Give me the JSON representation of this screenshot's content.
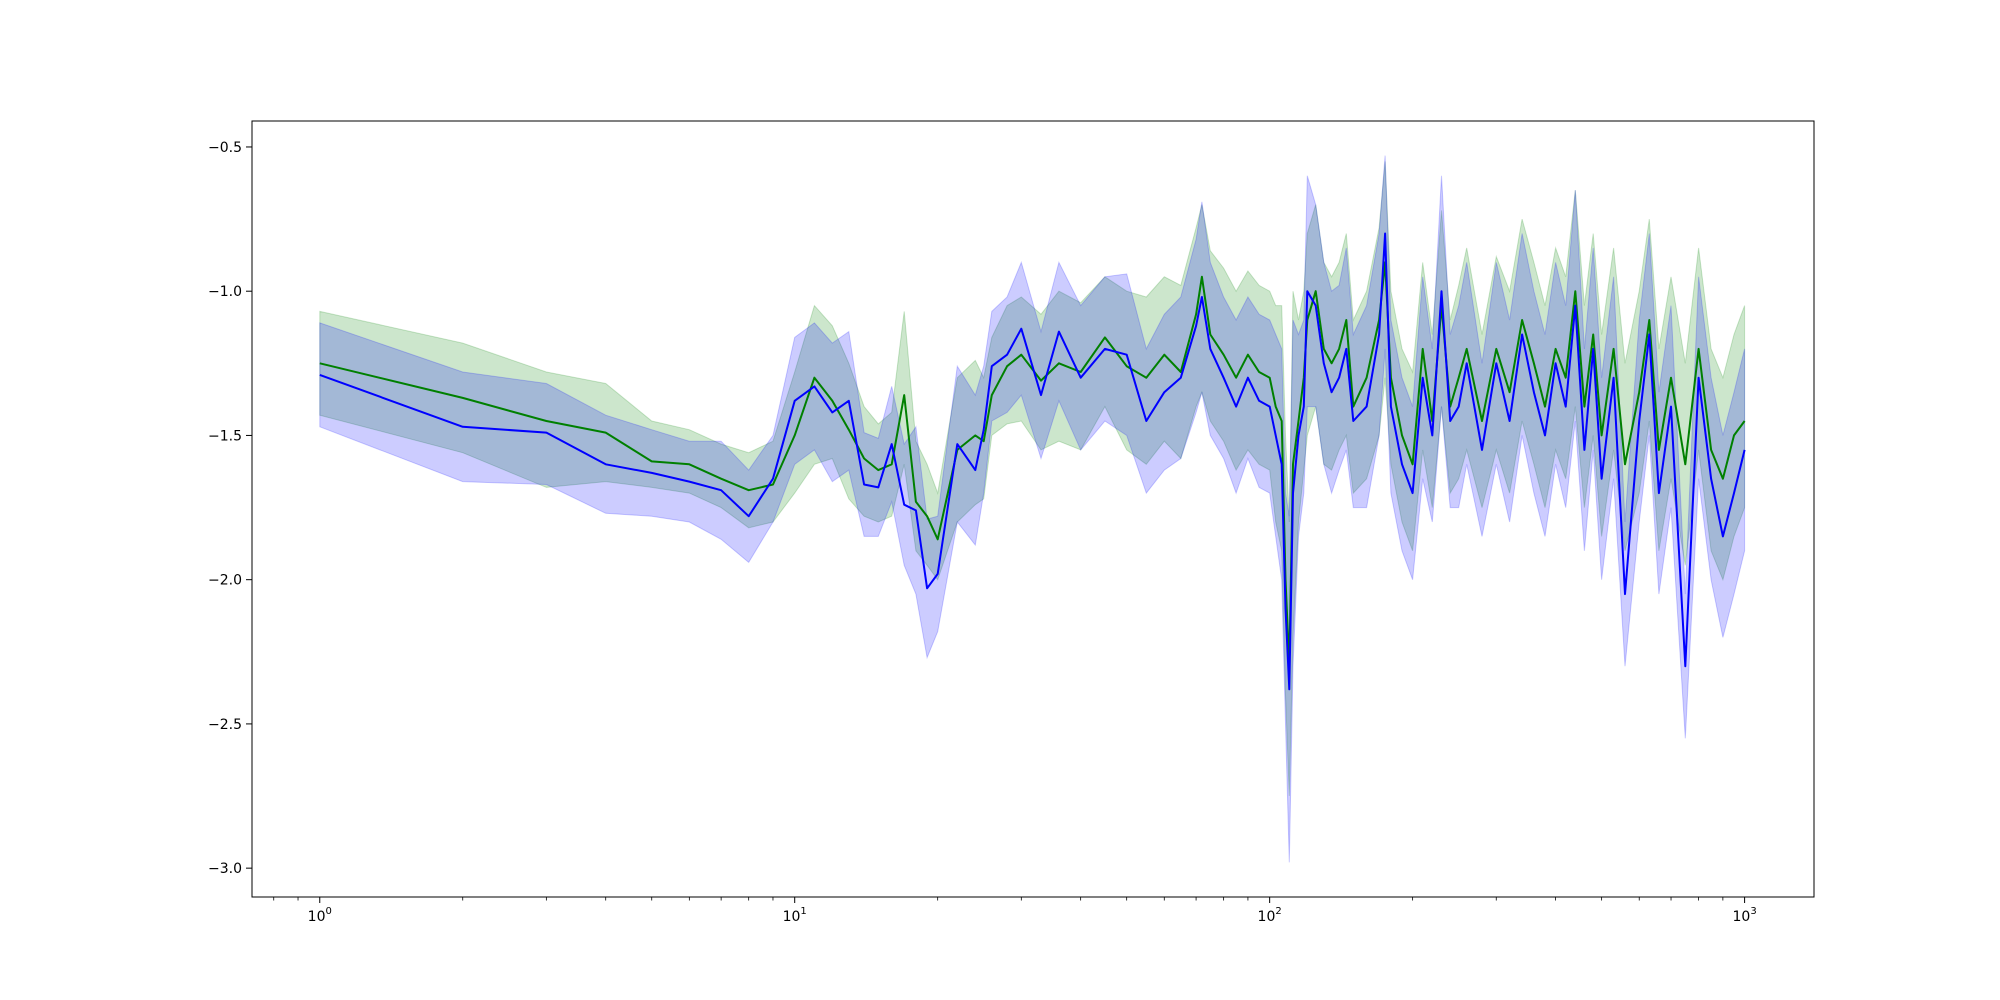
{
  "chart_data": {
    "type": "line",
    "title": "",
    "xlabel": "",
    "ylabel": "",
    "x_scale": "log",
    "xlim": [
      0.72,
      1400
    ],
    "ylim": [
      -3.1,
      -0.41
    ],
    "grid": false,
    "x_ticks": [
      {
        "value": 1,
        "base": "10",
        "exp": "0"
      },
      {
        "value": 10,
        "base": "10",
        "exp": "1"
      },
      {
        "value": 100,
        "base": "10",
        "exp": "2"
      },
      {
        "value": 1000,
        "base": "10",
        "exp": "3"
      }
    ],
    "y_ticks": [
      {
        "value": -0.5,
        "label": "−0.5"
      },
      {
        "value": -1.0,
        "label": "−1.0"
      },
      {
        "value": -1.5,
        "label": "−1.5"
      },
      {
        "value": -2.0,
        "label": "−2.0"
      },
      {
        "value": -2.5,
        "label": "−2.5"
      },
      {
        "value": -3.0,
        "label": "−3.0"
      }
    ],
    "series": [
      {
        "color": "#008000",
        "band_color": "#008000",
        "band_opacity": 0.2,
        "x": [
          1,
          2,
          3,
          4,
          5,
          6,
          7,
          8,
          9,
          10,
          11,
          12,
          13,
          14,
          15,
          16,
          17,
          18,
          19,
          20,
          22,
          24,
          25,
          26,
          28,
          30,
          33,
          36,
          40,
          45,
          50,
          55,
          60,
          65,
          70,
          72,
          75,
          80,
          85,
          90,
          95,
          100,
          103,
          106,
          108,
          110,
          112,
          115,
          118,
          120,
          125,
          130,
          135,
          140,
          145,
          150,
          160,
          170,
          175,
          180,
          190,
          200,
          210,
          220,
          230,
          240,
          250,
          260,
          280,
          300,
          320,
          340,
          360,
          380,
          400,
          420,
          440,
          460,
          480,
          500,
          530,
          560,
          600,
          630,
          660,
          700,
          750,
          800,
          850,
          900,
          950,
          1000
        ],
        "values": [
          -1.25,
          -1.37,
          -1.45,
          -1.49,
          -1.59,
          -1.6,
          -1.65,
          -1.69,
          -1.67,
          -1.5,
          -1.3,
          -1.38,
          -1.48,
          -1.58,
          -1.62,
          -1.6,
          -1.36,
          -1.73,
          -1.78,
          -1.86,
          -1.55,
          -1.5,
          -1.52,
          -1.36,
          -1.26,
          -1.22,
          -1.31,
          -1.25,
          -1.28,
          -1.16,
          -1.26,
          -1.3,
          -1.22,
          -1.28,
          -1.08,
          -0.95,
          -1.15,
          -1.22,
          -1.3,
          -1.22,
          -1.28,
          -1.3,
          -1.4,
          -1.45,
          -2.0,
          -2.3,
          -1.6,
          -1.45,
          -1.3,
          -1.1,
          -1.0,
          -1.2,
          -1.25,
          -1.2,
          -1.1,
          -1.4,
          -1.3,
          -1.1,
          -0.9,
          -1.3,
          -1.5,
          -1.6,
          -1.2,
          -1.45,
          -1.05,
          -1.4,
          -1.3,
          -1.2,
          -1.45,
          -1.2,
          -1.35,
          -1.1,
          -1.25,
          -1.4,
          -1.2,
          -1.3,
          -1.0,
          -1.4,
          -1.15,
          -1.5,
          -1.2,
          -1.6,
          -1.35,
          -1.1,
          -1.55,
          -1.3,
          -1.6,
          -1.2,
          -1.55,
          -1.65,
          -1.5,
          -1.45
        ],
        "band_lower": [
          -1.43,
          -1.56,
          -1.68,
          -1.66,
          -1.68,
          -1.7,
          -1.75,
          -1.82,
          -1.8,
          -1.7,
          -1.6,
          -1.58,
          -1.72,
          -1.78,
          -1.8,
          -1.78,
          -1.6,
          -1.9,
          -1.95,
          -2.0,
          -1.8,
          -1.74,
          -1.72,
          -1.5,
          -1.46,
          -1.45,
          -1.55,
          -1.52,
          -1.55,
          -1.4,
          -1.55,
          -1.6,
          -1.52,
          -1.58,
          -1.4,
          -1.35,
          -1.45,
          -1.52,
          -1.62,
          -1.55,
          -1.6,
          -1.62,
          -1.8,
          -1.9,
          -2.4,
          -2.75,
          -2.2,
          -1.8,
          -1.62,
          -1.5,
          -1.4,
          -1.6,
          -1.62,
          -1.55,
          -1.5,
          -1.7,
          -1.65,
          -1.5,
          -1.3,
          -1.6,
          -1.8,
          -1.9,
          -1.55,
          -1.75,
          -1.4,
          -1.7,
          -1.65,
          -1.55,
          -1.75,
          -1.55,
          -1.7,
          -1.45,
          -1.6,
          -1.75,
          -1.55,
          -1.65,
          -1.4,
          -1.75,
          -1.5,
          -1.85,
          -1.55,
          -1.9,
          -1.7,
          -1.45,
          -1.9,
          -1.65,
          -1.95,
          -1.55,
          -1.9,
          -2.0,
          -1.85,
          -1.75
        ],
        "band_upper": [
          -1.07,
          -1.18,
          -1.28,
          -1.32,
          -1.45,
          -1.48,
          -1.53,
          -1.56,
          -1.52,
          -1.28,
          -1.05,
          -1.12,
          -1.25,
          -1.4,
          -1.46,
          -1.42,
          -1.07,
          -1.52,
          -1.6,
          -1.7,
          -1.3,
          -1.24,
          -1.3,
          -1.16,
          -1.05,
          -1.02,
          -1.08,
          -1.0,
          -1.04,
          -0.95,
          -1.0,
          -1.02,
          -0.95,
          -0.98,
          -0.78,
          -0.7,
          -0.86,
          -0.92,
          -1.0,
          -0.93,
          -0.98,
          -1.0,
          -1.05,
          -1.05,
          -1.5,
          -1.8,
          -1.0,
          -1.1,
          -1.0,
          -0.8,
          -0.7,
          -0.9,
          -0.95,
          -0.9,
          -0.8,
          -1.1,
          -1.0,
          -0.78,
          -0.55,
          -1.0,
          -1.2,
          -1.28,
          -0.9,
          -1.15,
          -0.72,
          -1.1,
          -0.98,
          -0.85,
          -1.15,
          -0.88,
          -1.0,
          -0.75,
          -0.9,
          -1.05,
          -0.85,
          -0.95,
          -0.65,
          -1.05,
          -0.8,
          -1.15,
          -0.85,
          -1.25,
          -1.0,
          -0.75,
          -1.2,
          -0.95,
          -1.25,
          -0.85,
          -1.2,
          -1.3,
          -1.15,
          -1.05
        ]
      },
      {
        "color": "#0000ff",
        "band_color": "#0000ff",
        "band_opacity": 0.2,
        "x": [
          1,
          2,
          3,
          4,
          5,
          6,
          7,
          8,
          9,
          10,
          11,
          12,
          13,
          14,
          15,
          16,
          17,
          18,
          19,
          20,
          22,
          24,
          25,
          26,
          28,
          30,
          33,
          36,
          40,
          45,
          50,
          55,
          60,
          65,
          70,
          72,
          75,
          80,
          85,
          90,
          95,
          100,
          103,
          106,
          108,
          110,
          112,
          115,
          118,
          120,
          125,
          130,
          135,
          140,
          145,
          150,
          160,
          170,
          175,
          180,
          190,
          200,
          210,
          220,
          230,
          240,
          250,
          260,
          280,
          300,
          320,
          340,
          360,
          380,
          400,
          420,
          440,
          460,
          480,
          500,
          530,
          560,
          600,
          630,
          660,
          700,
          750,
          800,
          850,
          900,
          950,
          1000
        ],
        "values": [
          -1.29,
          -1.47,
          -1.49,
          -1.6,
          -1.63,
          -1.66,
          -1.69,
          -1.78,
          -1.65,
          -1.38,
          -1.33,
          -1.42,
          -1.38,
          -1.67,
          -1.68,
          -1.53,
          -1.74,
          -1.76,
          -2.03,
          -1.98,
          -1.53,
          -1.62,
          -1.48,
          -1.26,
          -1.22,
          -1.13,
          -1.36,
          -1.14,
          -1.3,
          -1.2,
          -1.22,
          -1.45,
          -1.35,
          -1.3,
          -1.12,
          -1.02,
          -1.2,
          -1.3,
          -1.4,
          -1.3,
          -1.38,
          -1.4,
          -1.5,
          -1.6,
          -2.1,
          -2.38,
          -1.7,
          -1.5,
          -1.4,
          -1.0,
          -1.05,
          -1.25,
          -1.35,
          -1.3,
          -1.2,
          -1.45,
          -1.4,
          -1.15,
          -0.8,
          -1.4,
          -1.6,
          -1.7,
          -1.3,
          -1.5,
          -1.0,
          -1.45,
          -1.4,
          -1.25,
          -1.55,
          -1.25,
          -1.45,
          -1.15,
          -1.35,
          -1.5,
          -1.25,
          -1.4,
          -1.05,
          -1.55,
          -1.2,
          -1.65,
          -1.3,
          -2.05,
          -1.45,
          -1.15,
          -1.7,
          -1.4,
          -2.3,
          -1.3,
          -1.65,
          -1.85,
          -1.7,
          -1.55
        ],
        "band_lower": [
          -1.47,
          -1.66,
          -1.67,
          -1.77,
          -1.78,
          -1.8,
          -1.86,
          -1.94,
          -1.8,
          -1.6,
          -1.55,
          -1.66,
          -1.62,
          -1.85,
          -1.85,
          -1.73,
          -1.95,
          -2.05,
          -2.27,
          -2.18,
          -1.8,
          -1.88,
          -1.7,
          -1.45,
          -1.42,
          -1.36,
          -1.58,
          -1.38,
          -1.55,
          -1.45,
          -1.5,
          -1.7,
          -1.62,
          -1.58,
          -1.42,
          -1.35,
          -1.5,
          -1.58,
          -1.7,
          -1.58,
          -1.68,
          -1.7,
          -1.85,
          -2.0,
          -2.5,
          -2.98,
          -2.3,
          -1.85,
          -1.7,
          -1.4,
          -1.4,
          -1.6,
          -1.7,
          -1.62,
          -1.55,
          -1.75,
          -1.75,
          -1.5,
          -1.2,
          -1.7,
          -1.9,
          -2.0,
          -1.65,
          -1.8,
          -1.4,
          -1.75,
          -1.75,
          -1.6,
          -1.85,
          -1.6,
          -1.8,
          -1.5,
          -1.7,
          -1.85,
          -1.6,
          -1.75,
          -1.45,
          -1.9,
          -1.55,
          -2.0,
          -1.65,
          -2.3,
          -1.8,
          -1.5,
          -2.05,
          -1.75,
          -2.55,
          -1.65,
          -2.0,
          -2.2,
          -2.05,
          -1.9
        ],
        "band_upper": [
          -1.11,
          -1.28,
          -1.32,
          -1.43,
          -1.48,
          -1.52,
          -1.52,
          -1.62,
          -1.5,
          -1.16,
          -1.11,
          -1.18,
          -1.14,
          -1.49,
          -1.51,
          -1.33,
          -1.53,
          -1.47,
          -1.79,
          -1.78,
          -1.26,
          -1.36,
          -1.26,
          -1.07,
          -1.02,
          -0.9,
          -1.14,
          -0.9,
          -1.05,
          -0.95,
          -0.94,
          -1.2,
          -1.08,
          -1.02,
          -0.82,
          -0.69,
          -0.9,
          -1.02,
          -1.1,
          -1.02,
          -1.08,
          -1.1,
          -1.15,
          -1.2,
          -1.7,
          -1.78,
          -1.1,
          -1.15,
          -1.1,
          -0.6,
          -0.7,
          -0.9,
          -1.0,
          -0.98,
          -0.85,
          -1.15,
          -1.05,
          -0.8,
          -0.53,
          -1.1,
          -1.3,
          -1.4,
          -0.95,
          -1.2,
          -0.6,
          -1.15,
          -1.05,
          -0.9,
          -1.25,
          -0.9,
          -1.1,
          -0.8,
          -1.0,
          -1.15,
          -0.9,
          -1.05,
          -0.65,
          -1.2,
          -0.85,
          -1.3,
          -0.95,
          -1.8,
          -1.1,
          -0.8,
          -1.35,
          -1.05,
          -2.05,
          -0.95,
          -1.3,
          -1.5,
          -1.35,
          -1.2
        ]
      }
    ]
  }
}
